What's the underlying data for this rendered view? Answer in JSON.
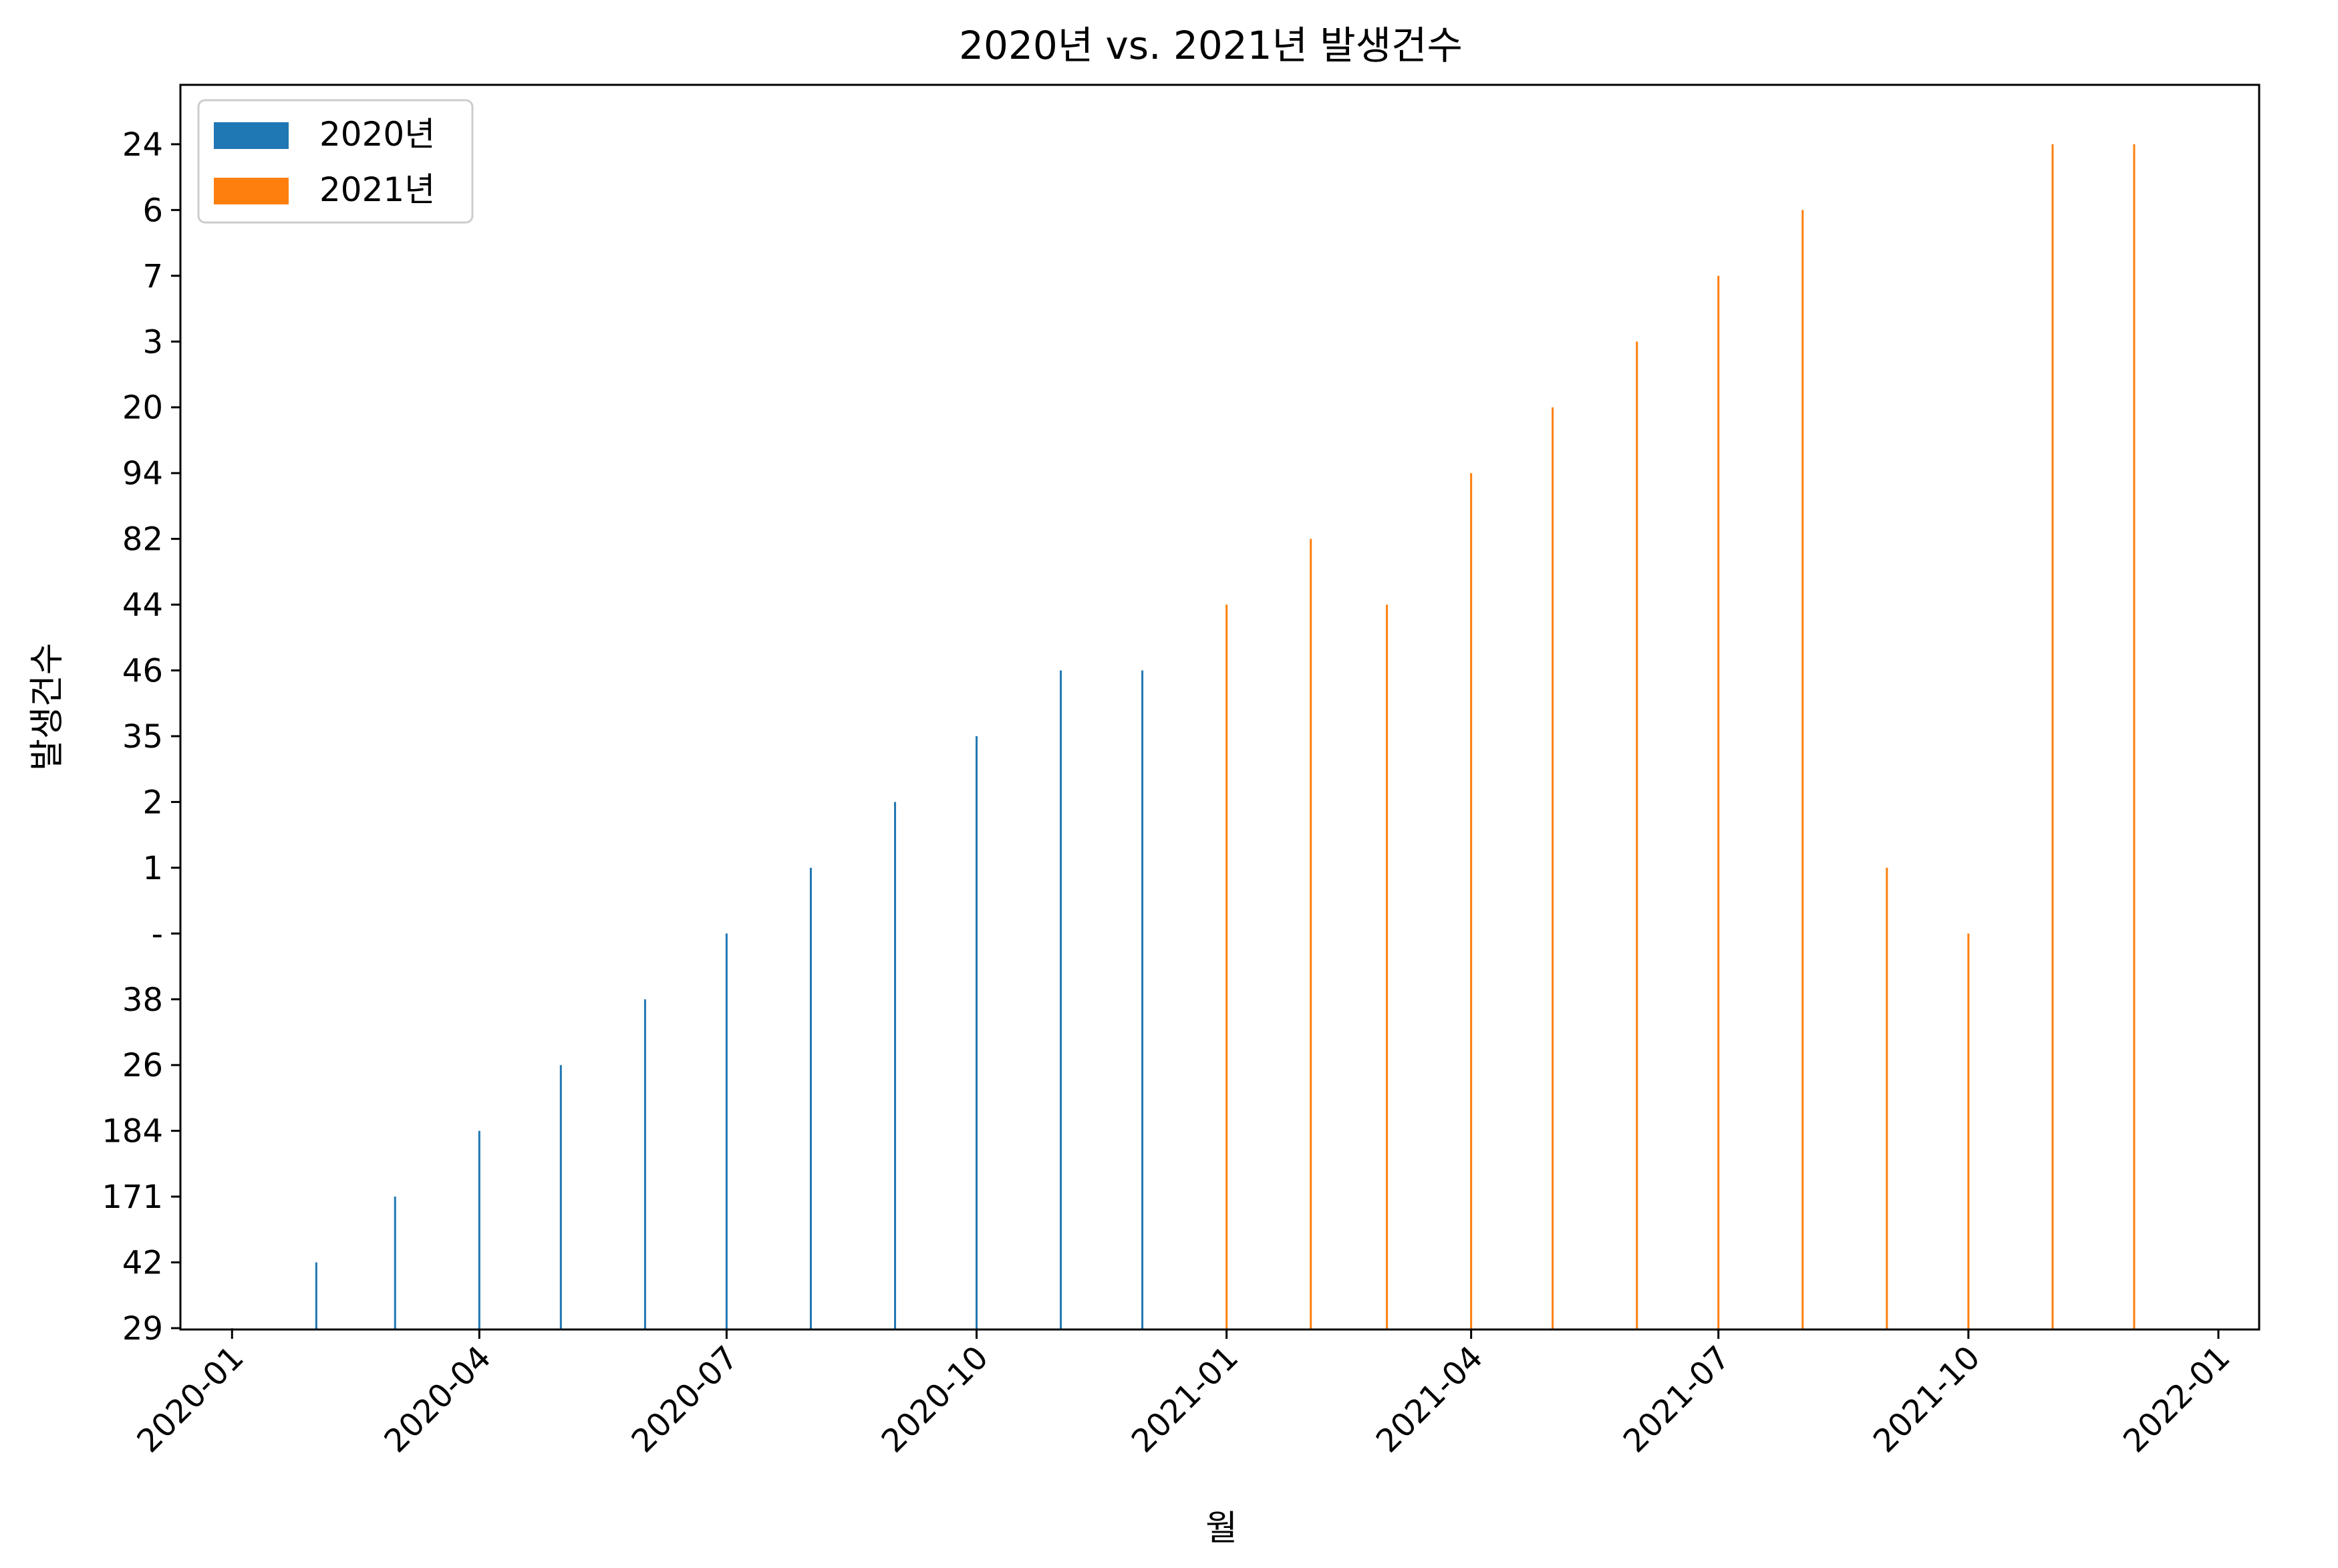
{
  "chart_data": {
    "type": "bar",
    "title": "2020년 vs. 2021년 발생건수",
    "xlabel": "월",
    "ylabel": "발생건수",
    "y_axis_kind": "categorical",
    "y_categories": [
      "29",
      "42",
      "171",
      "184",
      "26",
      "38",
      "-",
      "1",
      "2",
      "35",
      "46",
      "44",
      "82",
      "94",
      "20",
      "3",
      "7",
      "6",
      "24"
    ],
    "x_axis_kind": "date",
    "x_ticks": [
      "2020-01",
      "2020-04",
      "2020-07",
      "2020-10",
      "2021-01",
      "2021-04",
      "2021-07",
      "2021-10",
      "2022-01"
    ],
    "x_range": [
      "2019-12-13",
      "2022-01-16"
    ],
    "legend": {
      "position": "top-left",
      "entries": [
        "2020년",
        "2021년"
      ]
    },
    "grid": false,
    "series": [
      {
        "name": "2020년",
        "color": "#1f77b4",
        "x": [
          "2020-01-01",
          "2020-02-01",
          "2020-03-01",
          "2020-04-01",
          "2020-05-01",
          "2020-06-01",
          "2020-07-01",
          "2020-08-01",
          "2020-09-01",
          "2020-10-01",
          "2020-11-01",
          "2020-12-01"
        ],
        "values": [
          "29",
          "42",
          "171",
          "184",
          "26",
          "38",
          "-",
          "1",
          "2",
          "35",
          "46",
          "46"
        ]
      },
      {
        "name": "2021년",
        "color": "#ff7f0e",
        "x": [
          "2021-01-01",
          "2021-02-01",
          "2021-03-01",
          "2021-04-01",
          "2021-05-01",
          "2021-06-01",
          "2021-07-01",
          "2021-08-01",
          "2021-09-01",
          "2021-10-01",
          "2021-11-01",
          "2021-12-01"
        ],
        "values": [
          "44",
          "82",
          "44",
          "94",
          "20",
          "3",
          "7",
          "6",
          "1",
          "-",
          "24",
          "24"
        ]
      }
    ]
  }
}
